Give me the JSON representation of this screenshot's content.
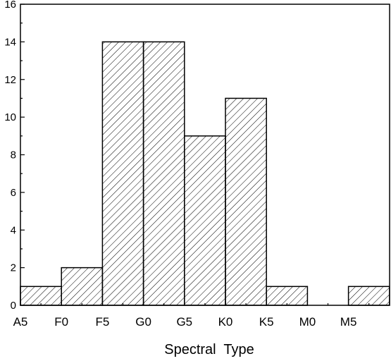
{
  "chart_data": {
    "type": "bar",
    "title": "",
    "xlabel": "Spectral  Type",
    "ylabel": "",
    "ylim": [
      0,
      16
    ],
    "y_ticks": [
      "0",
      "2",
      "4",
      "6",
      "8",
      "10",
      "12",
      "14",
      "16"
    ],
    "x_ticks": [
      "A5",
      "F0",
      "F5",
      "G0",
      "G5",
      "K0",
      "K5",
      "M0",
      "M5"
    ],
    "bins": [
      {
        "from": "A5",
        "to": "F0",
        "value": 1
      },
      {
        "from": "F0",
        "to": "F5",
        "value": 2
      },
      {
        "from": "F5",
        "to": "G0",
        "value": 14
      },
      {
        "from": "G0",
        "to": "G5",
        "value": 14
      },
      {
        "from": "G5",
        "to": "K0",
        "value": 9
      },
      {
        "from": "K0",
        "to": "K5",
        "value": 11
      },
      {
        "from": "K5",
        "to": "M0",
        "value": 1
      },
      {
        "from": "M0",
        "to": "M5",
        "value": 0
      },
      {
        "from": "M5",
        "to": "M5+",
        "value": 1
      }
    ],
    "bar_fill": "hatched",
    "grid": false,
    "legend": "none"
  }
}
